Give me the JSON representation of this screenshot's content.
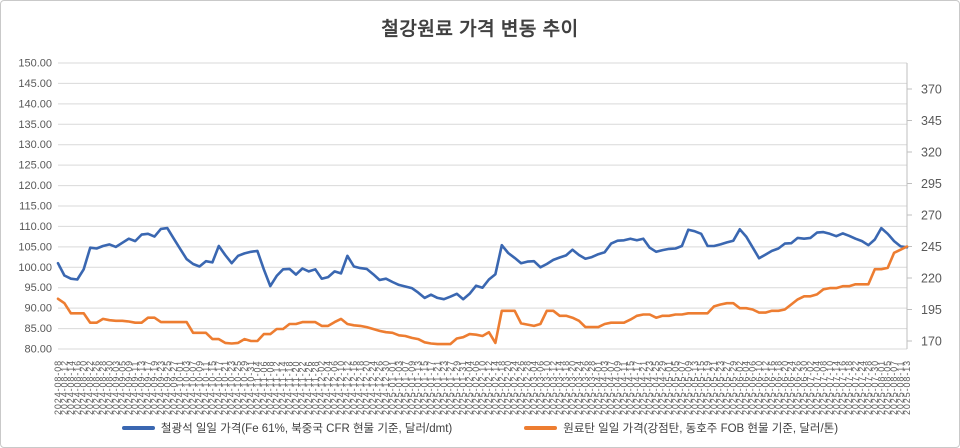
{
  "title": "철강원료 가격 변동 추이",
  "legend": [
    {
      "label": "철광석 일일 가격(Fe 61%, 북중국 CFR 현물 기준, 달러/dmt)",
      "color": "#3A67B1"
    },
    {
      "label": "원료탄 일일 가격(강점탄, 동호주 FOB 현물 기준, 달러/톤)",
      "color": "#ED7D31"
    }
  ],
  "colors": {
    "grid": "#D9D9D9",
    "axis_line": "#BFBFBF",
    "tick_text": "#595959",
    "iron_ore": "#3A67B1",
    "coal": "#ED7D31"
  },
  "chart_data": {
    "type": "line",
    "title": "철강원료 가격 변동 추이",
    "grid": true,
    "legend_position": "bottom",
    "left_axis": {
      "min": 80,
      "max": 150,
      "step": 5,
      "labels": [
        "150.00",
        "145.00",
        "140.00",
        "135.00",
        "130.00",
        "125.00",
        "120.00",
        "115.00",
        "110.00",
        "105.00",
        "100.00",
        "95.00",
        "90.00",
        "85.00",
        "80.00"
      ]
    },
    "right_axis": {
      "labels": [
        "370",
        "345",
        "320",
        "295",
        "270",
        "245",
        "220",
        "195",
        "170"
      ]
    },
    "categories": [
      "2024-08-08",
      "2024-08-12",
      "2024-08-14",
      "2024-08-16",
      "2024-08-20",
      "2024-08-22",
      "2024-08-26",
      "2024-08-28",
      "2024-08-30",
      "2024-09-03",
      "2024-09-05",
      "2024-09-09",
      "2024-09-11",
      "2024-09-13",
      "2024-09-17",
      "2024-09-19",
      "2024-09-23",
      "2024-09-25",
      "2024-09-27",
      "2024-10-01",
      "2024-10-03",
      "2024-10-07",
      "2024-10-09",
      "2024-10-11",
      "2024-10-15",
      "2024-10-17",
      "2024-10-21",
      "2024-10-23",
      "2024-10-25",
      "2024-10-29",
      "2024-10-31",
      "2024-11-04",
      "2024-11-06",
      "2024-11-08",
      "2024-11-12",
      "2024-11-14",
      "2024-11-18",
      "2024-11-20",
      "2024-11-22",
      "2024-11-26",
      "2024-11-28",
      "2024-12-02",
      "2024-12-04",
      "2024-12-06",
      "2024-12-10",
      "2024-12-12",
      "2024-12-16",
      "2024-12-18",
      "2024-12-20",
      "2024-12-24",
      "2024-12-26",
      "2024-12-30",
      "2025-01-01",
      "2025-01-03",
      "2025-01-07",
      "2025-01-09",
      "2025-01-13",
      "2025-01-15",
      "2025-01-17",
      "2025-01-21",
      "2025-01-23",
      "2025-01-27",
      "2025-01-29",
      "2025-01-31",
      "2025-02-04",
      "2025-02-06",
      "2025-02-10",
      "2025-02-12",
      "2025-02-14",
      "2025-02-18",
      "2025-02-20",
      "2025-02-24",
      "2025-02-26",
      "2025-02-28",
      "2025-03-04",
      "2025-03-06",
      "2025-03-10",
      "2025-03-12",
      "2025-03-14",
      "2025-03-18",
      "2025-03-20",
      "2025-03-24",
      "2025-03-26",
      "2025-03-28",
      "2025-04-01",
      "2025-04-03",
      "2025-04-07",
      "2025-04-09",
      "2025-04-11",
      "2025-04-15",
      "2025-04-17",
      "2025-04-21",
      "2025-04-23",
      "2025-04-25",
      "2025-04-29",
      "2025-05-01",
      "2025-05-05",
      "2025-05-07",
      "2025-05-09",
      "2025-05-13",
      "2025-05-15",
      "2025-05-19",
      "2025-05-21",
      "2025-05-23",
      "2025-05-27",
      "2025-05-29",
      "2025-06-02",
      "2025-06-04",
      "2025-06-06",
      "2025-06-10",
      "2025-06-12",
      "2025-06-16",
      "2025-06-18",
      "2025-06-20",
      "2025-06-24",
      "2025-06-26",
      "2025-06-30",
      "2025-07-02",
      "2025-07-04",
      "2025-07-08",
      "2025-07-10",
      "2025-07-14",
      "2025-07-16",
      "2025-07-18",
      "2025-07-22",
      "2025-07-24",
      "2025-07-28",
      "2025-07-30",
      "2025-08-01",
      "2025-08-05",
      "2025-08-07",
      "2025-08-11",
      "2025-08-13"
    ],
    "series": [
      {
        "name": "철광석 일일 가격(Fe 61%, 북중국 CFR 현물 기준, 달러/dmt)",
        "axis": "left",
        "color": "#3A67B1",
        "values": [
          101.0,
          98.0,
          97.2,
          97.0,
          99.5,
          104.8,
          104.6,
          105.2,
          105.6,
          105.0,
          106.0,
          107.0,
          106.4,
          108.0,
          108.2,
          107.5,
          109.4,
          109.6,
          107.0,
          104.5,
          102.0,
          100.8,
          100.2,
          101.5,
          101.2,
          105.2,
          103.0,
          101.0,
          102.8,
          103.4,
          103.8,
          104.0,
          99.5,
          95.4,
          97.9,
          99.5,
          99.6,
          98.2,
          99.7,
          99.0,
          99.5,
          97.2,
          97.6,
          99.0,
          98.5,
          102.8,
          100.2,
          99.8,
          99.6,
          98.3,
          96.9,
          97.2,
          96.4,
          95.7,
          95.3,
          94.9,
          93.8,
          92.5,
          93.3,
          92.5,
          92.2,
          92.8,
          93.5,
          92.2,
          93.5,
          95.5,
          95.0,
          97.0,
          98.3,
          105.4,
          103.5,
          102.3,
          101.0,
          101.4,
          101.5,
          100.0,
          100.8,
          101.8,
          102.4,
          102.9,
          104.3,
          103.0,
          102.1,
          102.5,
          103.2,
          103.7,
          105.8,
          106.5,
          106.6,
          107.0,
          106.6,
          107.0,
          104.8,
          103.8,
          104.2,
          104.5,
          104.6,
          105.2,
          109.2,
          108.8,
          108.2,
          105.2,
          105.2,
          105.6,
          106.1,
          106.5,
          109.3,
          107.5,
          104.9,
          102.2,
          103.1,
          104.0,
          104.6,
          105.8,
          105.9,
          107.2,
          107.0,
          107.2,
          108.5,
          108.6,
          108.2,
          107.6,
          108.3,
          107.7,
          107.0,
          106.4,
          105.4,
          106.8,
          109.6,
          108.2,
          106.4,
          105.1,
          104.9
        ]
      },
      {
        "name": "원료탄 일일 가격(강점탄, 동호주 FOB 현물 기준, 달러/톤)",
        "axis": "right",
        "color": "#ED7D31",
        "values": [
          203.5,
          200.0,
          192.0,
          192.0,
          192.0,
          184.5,
          184.5,
          187.5,
          186.5,
          186.0,
          186.0,
          185.5,
          184.5,
          184.5,
          188.5,
          188.5,
          185.0,
          185.0,
          185.0,
          185.0,
          185.0,
          176.5,
          176.5,
          176.5,
          171.5,
          171.5,
          168.5,
          168.0,
          168.5,
          171.5,
          170.0,
          170.0,
          175.5,
          175.5,
          179.5,
          179.5,
          183.5,
          183.5,
          185.0,
          185.0,
          185.0,
          182.0,
          182.0,
          185.0,
          187.5,
          183.5,
          182.5,
          182.0,
          181.0,
          179.5,
          178.0,
          177.0,
          176.5,
          174.5,
          174.0,
          172.5,
          171.5,
          169.0,
          168.0,
          167.5,
          167.5,
          167.5,
          172.0,
          173.0,
          175.5,
          175.0,
          174.0,
          177.0,
          168.5,
          194.0,
          194.0,
          194.0,
          184.0,
          183.0,
          182.0,
          183.5,
          194.0,
          194.0,
          190.0,
          190.0,
          188.5,
          186.0,
          181.0,
          181.0,
          181.0,
          183.5,
          184.5,
          184.5,
          184.5,
          187.0,
          190.0,
          191.0,
          191.0,
          188.5,
          190.0,
          190.0,
          191.0,
          191.0,
          192.0,
          192.0,
          192.0,
          192.0,
          197.5,
          199.0,
          200.0,
          200.0,
          196.0,
          196.0,
          195.0,
          192.5,
          192.5,
          194.0,
          194.0,
          195.0,
          199.0,
          203.0,
          205.5,
          205.5,
          207.0,
          211.0,
          212.0,
          212.0,
          213.5,
          213.5,
          215.0,
          215.0,
          215.0,
          227.0,
          227.0,
          228.0,
          240.0,
          242.5,
          245.0
        ]
      }
    ]
  }
}
